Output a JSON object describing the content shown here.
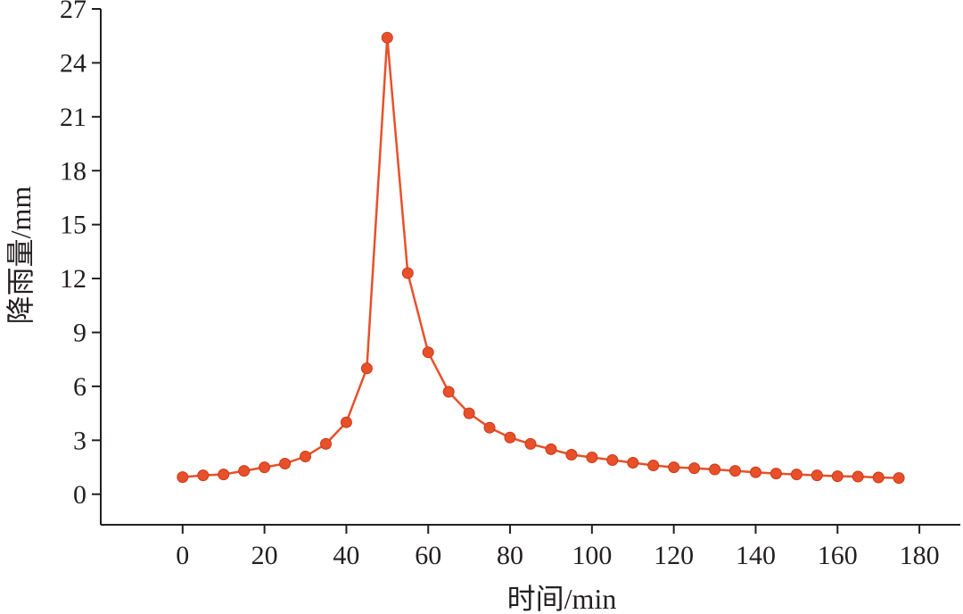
{
  "chart_data": {
    "type": "line",
    "title": "",
    "xlabel": "时间/min",
    "ylabel": "降雨量/mm",
    "xlim": [
      -20,
      190
    ],
    "ylim": [
      -1.7,
      27
    ],
    "xticks": [
      0,
      20,
      40,
      60,
      80,
      100,
      120,
      140,
      160,
      180
    ],
    "yticks": [
      0,
      3,
      6,
      9,
      12,
      15,
      18,
      21,
      24,
      27
    ],
    "grid": false,
    "legend": "none",
    "colors": {
      "series": "#e8502a",
      "axis": "#231f20"
    },
    "series": [
      {
        "x": [
          0,
          5,
          10,
          15,
          20,
          25,
          30,
          35,
          40,
          45,
          50,
          55,
          60,
          65,
          70,
          75,
          80,
          85,
          90,
          95,
          100,
          105,
          110,
          115,
          120,
          125,
          130,
          135,
          140,
          145,
          150,
          155,
          160,
          165,
          170,
          175
        ],
        "values": [
          0.95,
          1.05,
          1.1,
          1.3,
          1.5,
          1.7,
          2.1,
          2.8,
          4.0,
          7.0,
          25.4,
          12.3,
          7.9,
          5.7,
          4.5,
          3.7,
          3.15,
          2.8,
          2.5,
          2.2,
          2.05,
          1.9,
          1.75,
          1.6,
          1.5,
          1.45,
          1.38,
          1.3,
          1.22,
          1.15,
          1.1,
          1.05,
          1.0,
          0.98,
          0.93,
          0.9
        ]
      }
    ]
  }
}
